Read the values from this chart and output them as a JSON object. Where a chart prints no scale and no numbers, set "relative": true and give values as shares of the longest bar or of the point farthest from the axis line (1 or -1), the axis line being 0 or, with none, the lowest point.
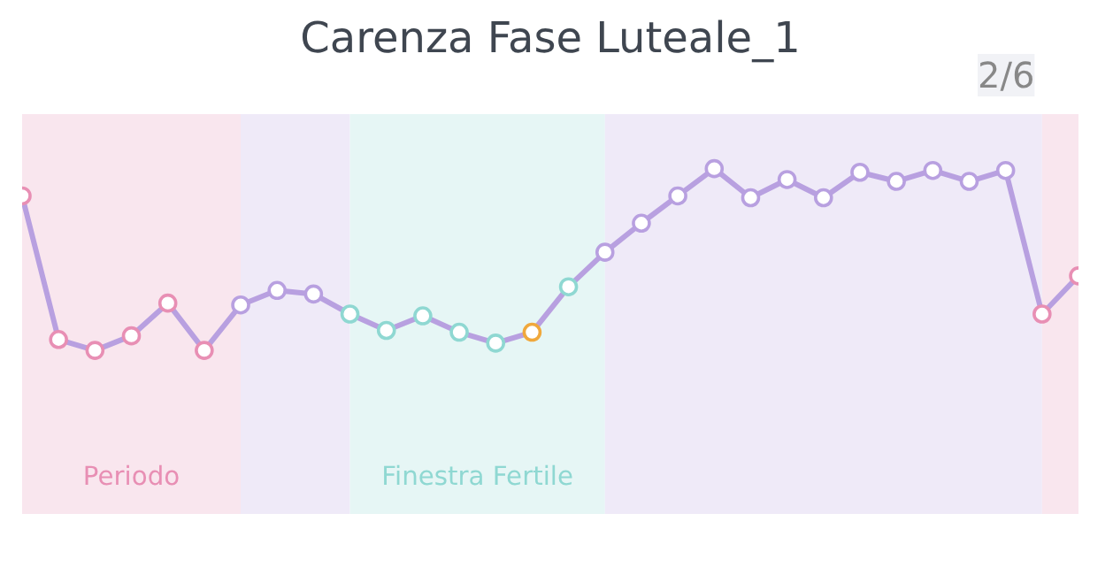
{
  "chart_data": {
    "type": "line",
    "title": "Carenza Fase Luteale_1",
    "annotations": [
      "2/6",
      "Periodo",
      "Finestra Fertile"
    ],
    "relative": true,
    "tick_labels": false,
    "grid": false,
    "marker": "circle",
    "line_style": "solid",
    "categories": [
      null,
      null,
      null,
      null,
      null,
      null,
      null,
      null,
      null,
      null,
      null,
      null,
      null,
      null,
      null,
      null,
      null,
      null,
      null,
      null,
      null,
      null,
      null,
      null,
      null,
      null,
      null,
      null,
      null,
      null
    ],
    "series": [
      {
        "color": "#b8a0e0",
        "values": [
          0.85,
          0.06,
          0,
          0.08,
          0.26,
          0,
          0.25,
          0.33,
          0.31,
          0.2,
          0.11,
          0.19,
          0.1,
          0.04,
          0.1,
          0.35,
          0.54,
          0.7,
          0.85,
          1,
          0.84,
          0.94,
          0.84,
          0.98,
          0.93,
          0.99,
          0.93,
          0.99,
          0.2,
          0.41
        ],
        "colors": [
          "#e88fb4",
          "#e88fb4",
          "#e88fb4",
          "#e88fb4",
          "#e88fb4",
          "#e88fb4",
          "#b8a0e0",
          "#b8a0e0",
          "#b8a0e0",
          "#8fd8d2",
          "#8fd8d2",
          "#8fd8d2",
          "#8fd8d2",
          "#8fd8d2",
          "#f0a83c",
          "#8fd8d2",
          "#b8a0e0",
          "#b8a0e0",
          "#b8a0e0",
          "#b8a0e0",
          "#b8a0e0",
          "#b8a0e0",
          "#b8a0e0",
          "#b8a0e0",
          "#b8a0e0",
          "#b8a0e0",
          "#b8a0e0",
          "#b8a0e0",
          "#e88fb4",
          "#e88fb4"
        ]
      }
    ]
  }
}
